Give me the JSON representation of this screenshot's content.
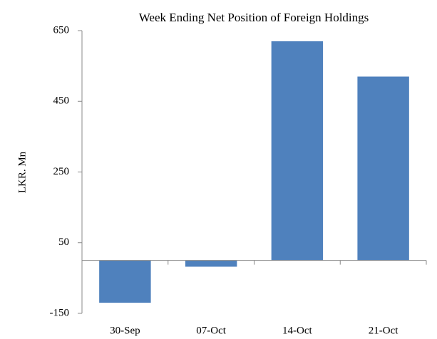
{
  "chart_data": {
    "type": "bar",
    "title": "Week Ending Net Position of Foreign Holdings",
    "y_label": "LKR. Mn",
    "categories": [
      "30-Sep",
      "07-Oct",
      "14-Oct",
      "21-Oct"
    ],
    "values": [
      -120,
      -18,
      620,
      520
    ],
    "color": "#4f81bd",
    "ylim": [
      -150,
      650
    ],
    "yticks": [
      -150,
      50,
      250,
      450,
      650
    ],
    "grid": false
  }
}
